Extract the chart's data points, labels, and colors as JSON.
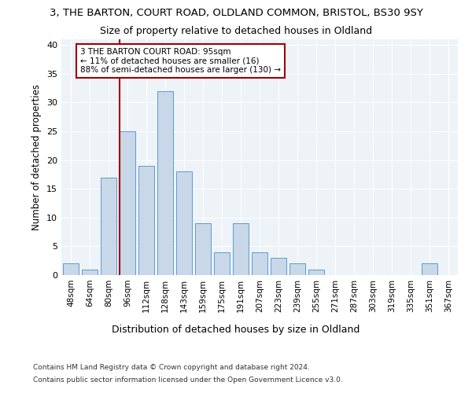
{
  "title1": "3, THE BARTON, COURT ROAD, OLDLAND COMMON, BRISTOL, BS30 9SY",
  "title2": "Size of property relative to detached houses in Oldland",
  "xlabel": "Distribution of detached houses by size in Oldland",
  "ylabel": "Number of detached properties",
  "categories": [
    "48sqm",
    "64sqm",
    "80sqm",
    "96sqm",
    "112sqm",
    "128sqm",
    "143sqm",
    "159sqm",
    "175sqm",
    "191sqm",
    "207sqm",
    "223sqm",
    "239sqm",
    "255sqm",
    "271sqm",
    "287sqm",
    "303sqm",
    "319sqm",
    "335sqm",
    "351sqm",
    "367sqm"
  ],
  "values": [
    2,
    1,
    17,
    25,
    19,
    32,
    18,
    9,
    4,
    9,
    4,
    3,
    2,
    1,
    0,
    0,
    0,
    0,
    0,
    2,
    0
  ],
  "bar_color": "#c8d8e8",
  "bar_edge_color": "#5b9bd5",
  "vline_color": "#a00000",
  "annotation_text": "3 THE BARTON COURT ROAD: 95sqm\n← 11% of detached houses are smaller (16)\n88% of semi-detached houses are larger (130) →",
  "annotation_box_edge": "#a00000",
  "ylim": [
    0,
    41
  ],
  "yticks": [
    0,
    5,
    10,
    15,
    20,
    25,
    30,
    35,
    40
  ],
  "footer1": "Contains HM Land Registry data © Crown copyright and database right 2024.",
  "footer2": "Contains public sector information licensed under the Open Government Licence v3.0.",
  "plot_bg_color": "#eef3f8",
  "title1_fontsize": 9.5,
  "title2_fontsize": 9
}
